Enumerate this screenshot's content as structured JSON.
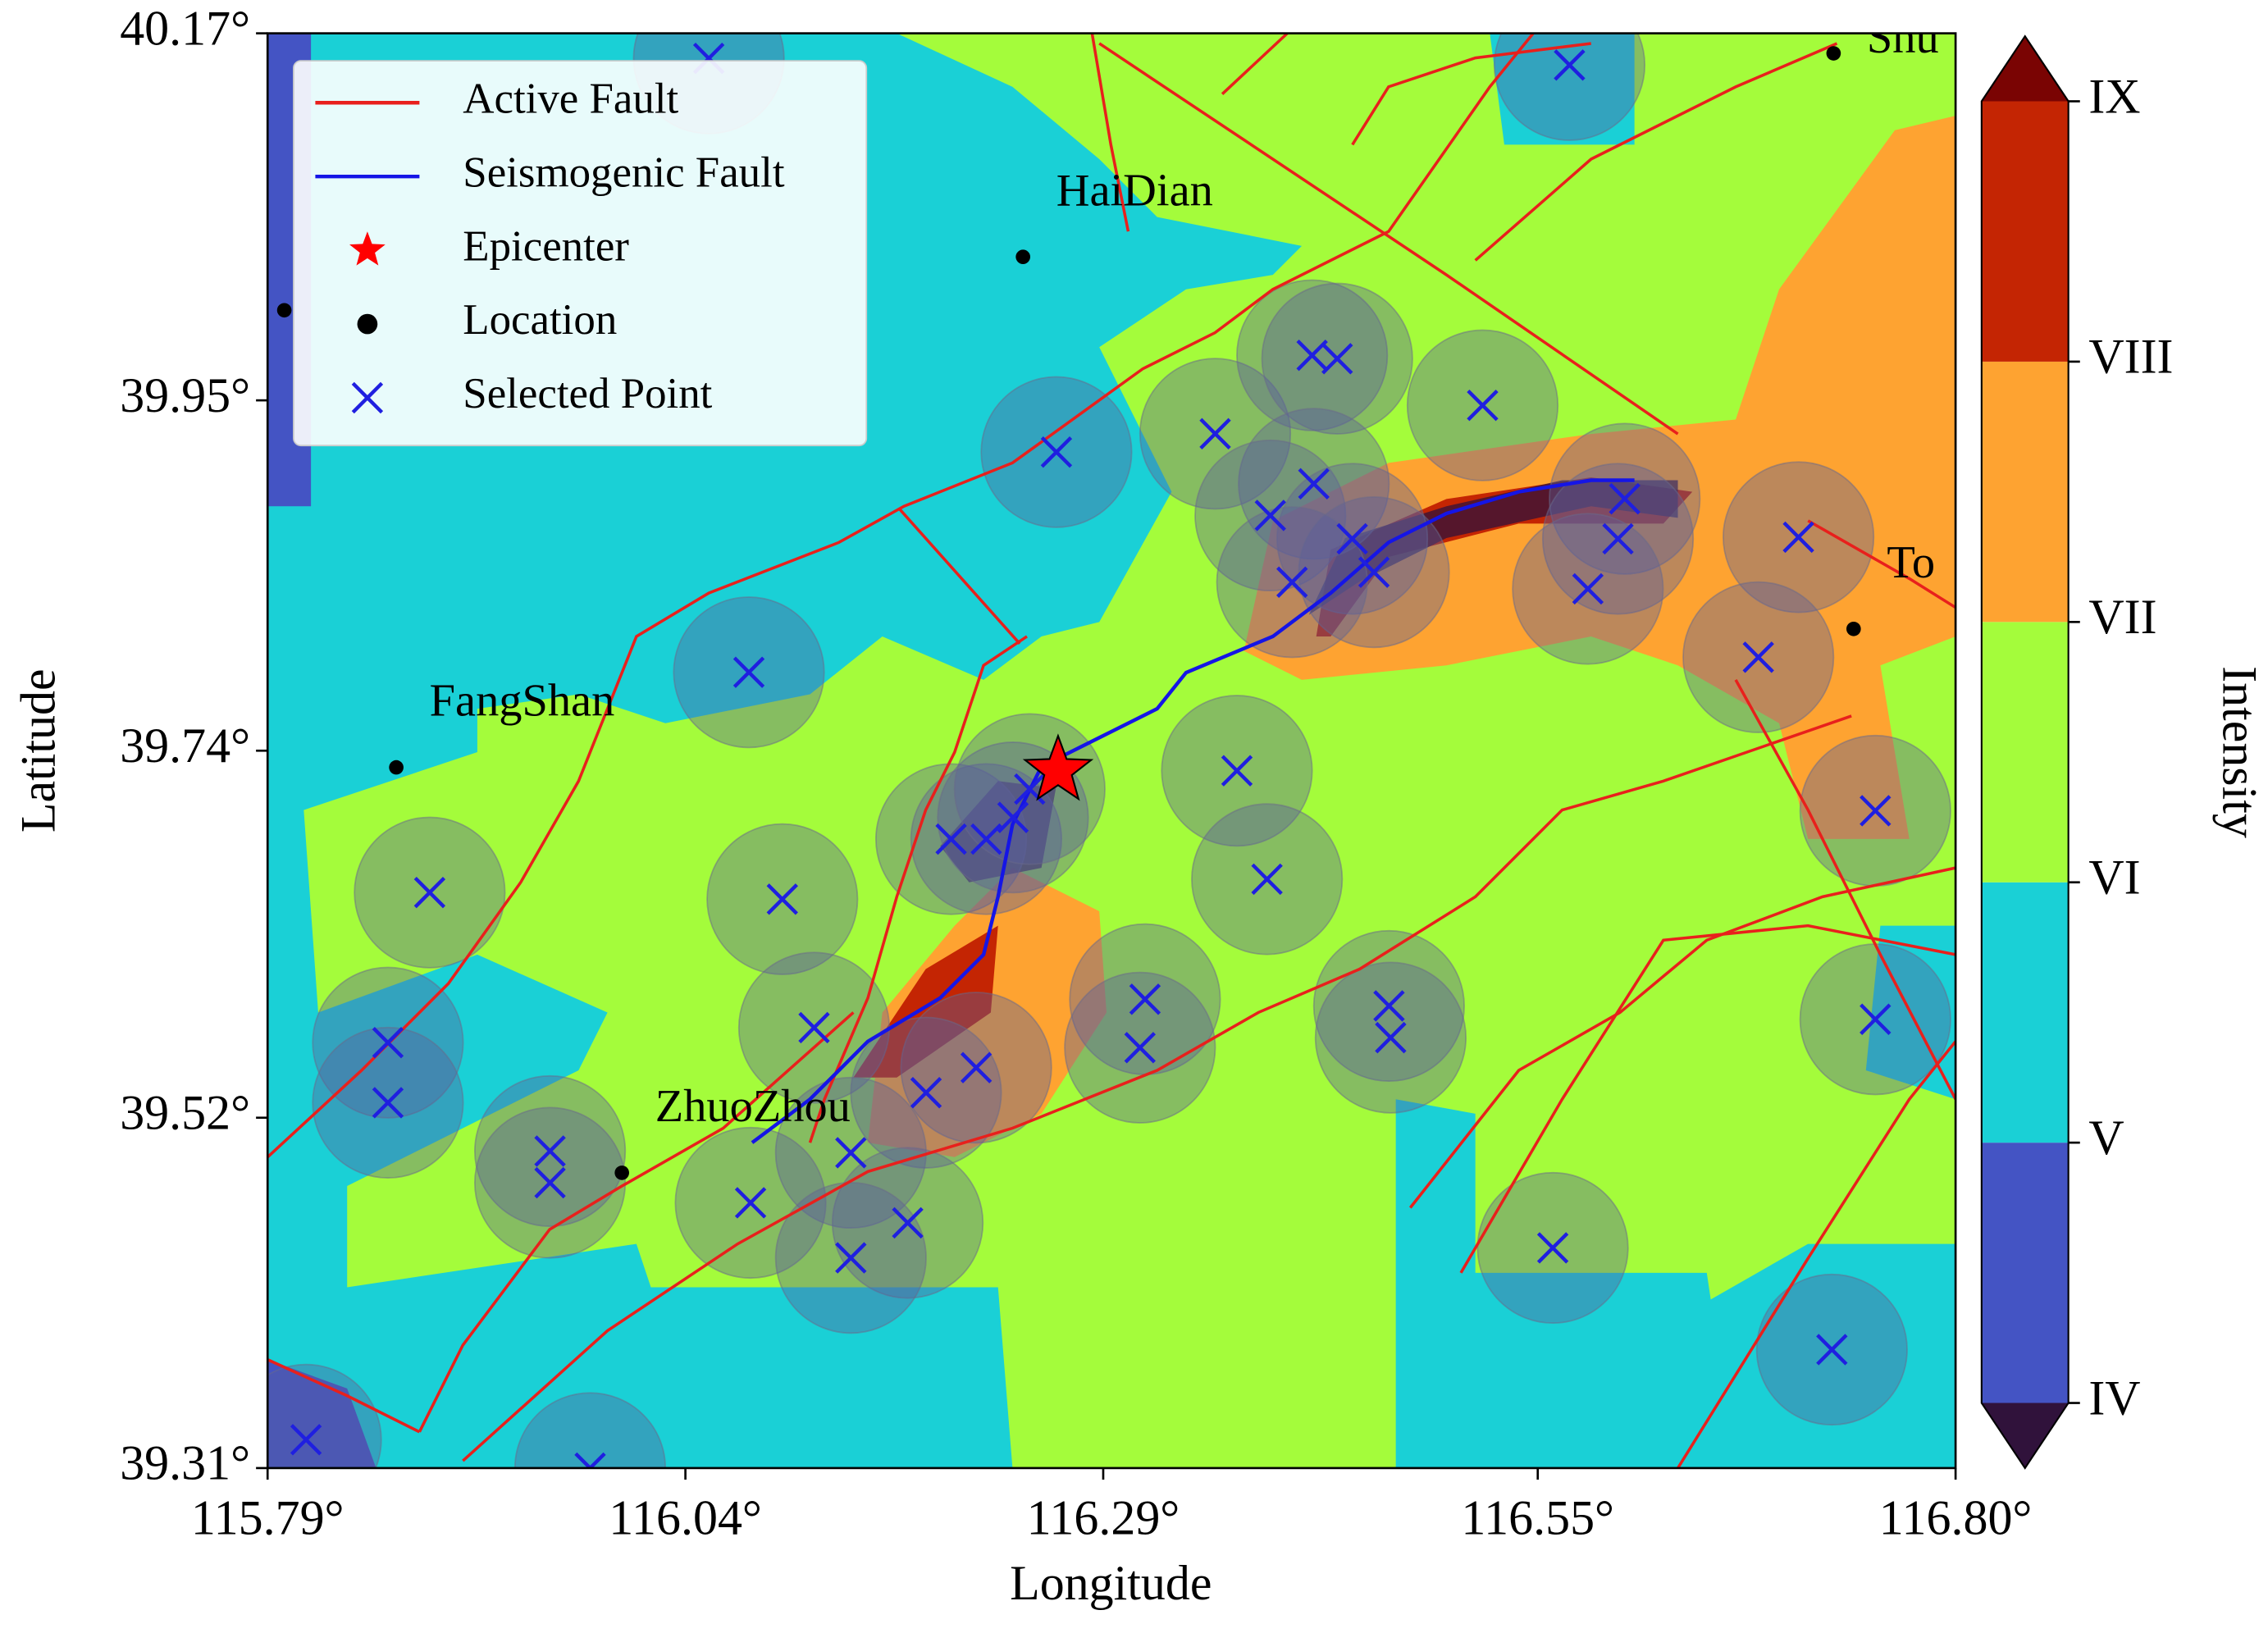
{
  "chart_data": {
    "type": "map",
    "xlabel": "Longitude",
    "ylabel": "Latitude",
    "xlim": [
      115.79,
      116.8
    ],
    "ylim": [
      39.31,
      40.17
    ],
    "xticks": [
      {
        "value": 115.79,
        "label": "115.79°"
      },
      {
        "value": 116.04,
        "label": "116.04°"
      },
      {
        "value": 116.29,
        "label": "116.29°"
      },
      {
        "value": 116.55,
        "label": "116.55°"
      },
      {
        "value": 116.8,
        "label": "116.80°"
      }
    ],
    "yticks": [
      {
        "value": 39.31,
        "label": "39.31°"
      },
      {
        "value": 39.52,
        "label": "39.52°"
      },
      {
        "value": 39.74,
        "label": "39.74°"
      },
      {
        "value": 39.95,
        "label": "39.95°"
      },
      {
        "value": 40.17,
        "label": "40.17°"
      }
    ],
    "legend_position": "upper left",
    "active_fault": {
      "name": "Active Fault",
      "color": "#e8201c"
    },
    "seismogenic_fault": {
      "name": "Seismogenic Fault",
      "color": "#1515e6"
    },
    "epicenter": {
      "name": "Epicenter",
      "color": "#ff0000",
      "x": 116.263,
      "y": 39.728
    },
    "locations": {
      "name": "Location",
      "color": "#000000",
      "x": [
        116.242,
        115.867,
        116.002,
        116.739,
        116.727,
        115.8
      ],
      "y": [
        40.036,
        39.73,
        39.487,
        39.813,
        40.158,
        40.004
      ],
      "labels": [
        "HaiDian",
        "FangShan",
        "ZhuoZhou",
        "To",
        "Shu",
        null
      ]
    },
    "selected_points": {
      "name": "Selected Point",
      "color": "#1f1fe0",
      "x": [
        116.569,
        116.262,
        116.357,
        116.415,
        116.43,
        116.517,
        116.416,
        116.39,
        116.439,
        116.452,
        116.403,
        116.602,
        116.598,
        116.58,
        116.706,
        116.682,
        116.078,
        116.37,
        116.388,
        116.752,
        116.752,
        115.887,
        116.098,
        116.199,
        116.22,
        116.236,
        116.246,
        116.117,
        116.214,
        116.184,
        116.315,
        116.312,
        116.461,
        116.462,
        115.862,
        115.862,
        115.959,
        115.959,
        116.139,
        116.079,
        116.173,
        116.139,
        116.559,
        116.726,
        115.813,
        115.983,
        116.054
      ],
      "y": [
        40.151,
        39.919,
        39.93,
        39.977,
        39.975,
        39.947,
        39.9,
        39.881,
        39.867,
        39.847,
        39.841,
        39.891,
        39.867,
        39.837,
        39.868,
        39.796,
        39.787,
        39.728,
        39.663,
        39.704,
        39.579,
        39.655,
        39.651,
        39.687,
        39.687,
        39.7,
        39.717,
        39.574,
        39.55,
        39.535,
        39.591,
        39.562,
        39.587,
        39.568,
        39.565,
        39.529,
        39.5,
        39.481,
        39.499,
        39.469,
        39.457,
        39.436,
        39.442,
        39.381,
        39.327,
        39.31,
        40.155
      ]
    },
    "colorbar": {
      "label": "Intensity",
      "ticks": [
        {
          "value": 4,
          "label": "IV"
        },
        {
          "value": 5,
          "label": "V"
        },
        {
          "value": 6,
          "label": "VI"
        },
        {
          "value": 7,
          "label": "VII"
        },
        {
          "value": 8,
          "label": "VIII"
        },
        {
          "value": 9,
          "label": "IX"
        }
      ],
      "colors": [
        "#30123b",
        "#4454c4",
        "#1ad0d6",
        "#a4fc3b",
        "#fea331",
        "#c42503",
        "#7a0403"
      ]
    }
  }
}
